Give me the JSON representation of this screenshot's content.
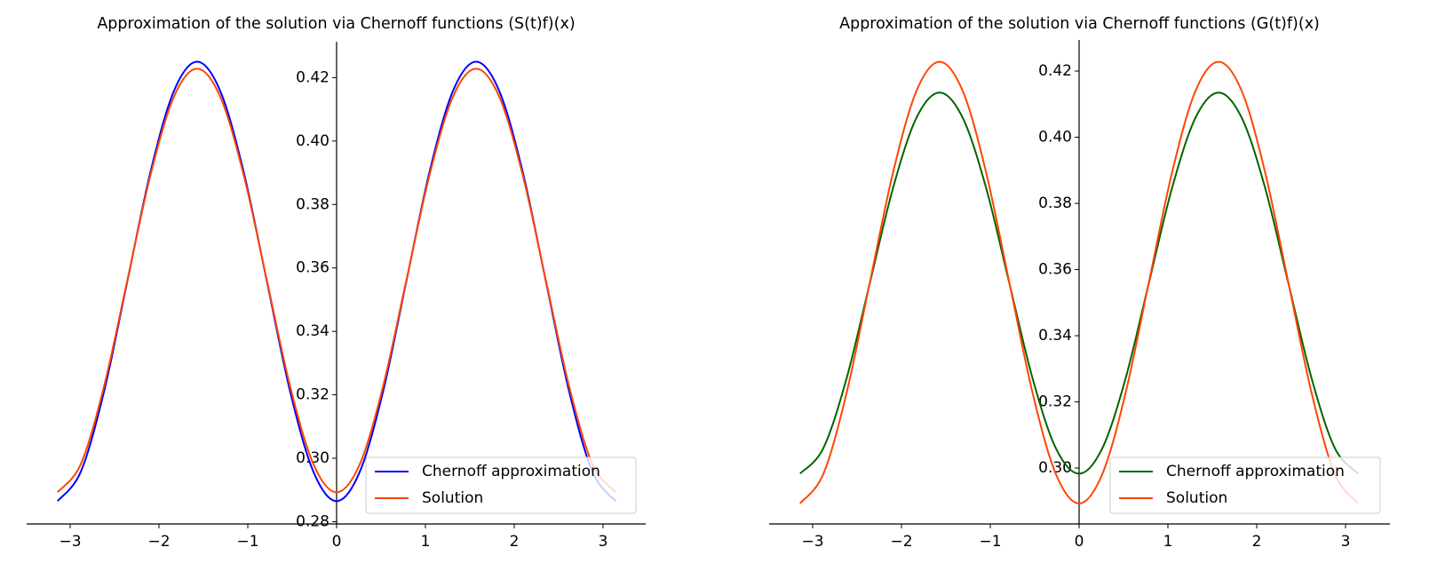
{
  "chart_data": [
    {
      "type": "line",
      "title": "Approximation of the solution via Chernoff functions (S(t)f)(x)",
      "x": [
        -3.1416,
        -2.8798,
        -2.618,
        -2.3562,
        -2.0944,
        -1.8326,
        -1.5708,
        -1.309,
        -1.0472,
        -0.7854,
        -0.5236,
        -0.2618,
        0,
        0.2618,
        0.5236,
        0.7854,
        1.0472,
        1.309,
        1.5708,
        1.8326,
        2.0944,
        2.3562,
        2.618,
        2.8798,
        3.1416
      ],
      "series": [
        {
          "name": "Chernoff approximation",
          "color": "#0000ff",
          "values": [
            0.2865,
            0.2958,
            0.3211,
            0.3558,
            0.3904,
            0.4157,
            0.425,
            0.4157,
            0.3904,
            0.3558,
            0.3211,
            0.2958,
            0.2865,
            0.2958,
            0.3211,
            0.3558,
            0.3904,
            0.4157,
            0.425,
            0.4157,
            0.3904,
            0.3558,
            0.3211,
            0.2958,
            0.2865
          ]
        },
        {
          "name": "Solution",
          "color": "#ff4500",
          "values": [
            0.2893,
            0.2982,
            0.3227,
            0.3561,
            0.3894,
            0.4139,
            0.4228,
            0.4139,
            0.3894,
            0.3561,
            0.3227,
            0.2982,
            0.2893,
            0.2982,
            0.3227,
            0.3561,
            0.3894,
            0.4139,
            0.4228,
            0.4139,
            0.3894,
            0.3561,
            0.3227,
            0.2982,
            0.2893
          ]
        }
      ],
      "xlim": [
        -3.49,
        3.48
      ],
      "xticks": [
        {
          "value": -3,
          "label": "−3"
        },
        {
          "value": -2,
          "label": "−2"
        },
        {
          "value": -1,
          "label": "−1"
        },
        0,
        1,
        2,
        3
      ],
      "ylim": [
        0.2793,
        0.4313
      ],
      "yticks": [
        0.28,
        {
          "value": 0.3,
          "label": "0.30"
        },
        0.32,
        0.34,
        0.36,
        0.38,
        {
          "value": 0.4,
          "label": "0.40"
        },
        0.42
      ],
      "legend": "lower right"
    },
    {
      "type": "line",
      "title": "Approximation of the solution via Chernoff functions (G(t)f)(x)",
      "x": [
        -3.1416,
        -2.8798,
        -2.618,
        -2.3562,
        -2.0944,
        -1.8326,
        -1.5708,
        -1.309,
        -1.0472,
        -0.7854,
        -0.5236,
        -0.2618,
        0,
        0.2618,
        0.5236,
        0.7854,
        1.0472,
        1.309,
        1.5708,
        1.8326,
        2.0944,
        2.3562,
        2.618,
        2.8798,
        3.1416
      ],
      "series": [
        {
          "name": "Chernoff approximation",
          "color": "#006400",
          "values": [
            0.2983,
            0.306,
            0.3271,
            0.3559,
            0.3847,
            0.4058,
            0.4135,
            0.4058,
            0.3847,
            0.3559,
            0.3271,
            0.306,
            0.2983,
            0.306,
            0.3271,
            0.3559,
            0.3847,
            0.4058,
            0.4135,
            0.4058,
            0.3847,
            0.3559,
            0.3271,
            0.306,
            0.2983
          ]
        },
        {
          "name": "Solution",
          "color": "#ff4500",
          "values": [
            0.2893,
            0.2982,
            0.3227,
            0.3561,
            0.3894,
            0.4139,
            0.4228,
            0.4139,
            0.3894,
            0.3561,
            0.3227,
            0.2982,
            0.2893,
            0.2982,
            0.3227,
            0.3561,
            0.3894,
            0.4139,
            0.4228,
            0.4139,
            0.3894,
            0.3561,
            0.3227,
            0.2982,
            0.2893
          ]
        }
      ],
      "xlim": [
        -3.49,
        3.5
      ],
      "xticks": [
        {
          "value": -3,
          "label": "−3"
        },
        {
          "value": -2,
          "label": "−2"
        },
        {
          "value": -1,
          "label": "−1"
        },
        0,
        1,
        2,
        3
      ],
      "ylim": [
        0.2831,
        0.4294
      ],
      "yticks": [
        {
          "value": 0.3,
          "label": "0.30"
        },
        0.32,
        0.34,
        0.36,
        0.38,
        {
          "value": 0.4,
          "label": "0.40"
        },
        0.42
      ],
      "legend": "lower right"
    }
  ]
}
